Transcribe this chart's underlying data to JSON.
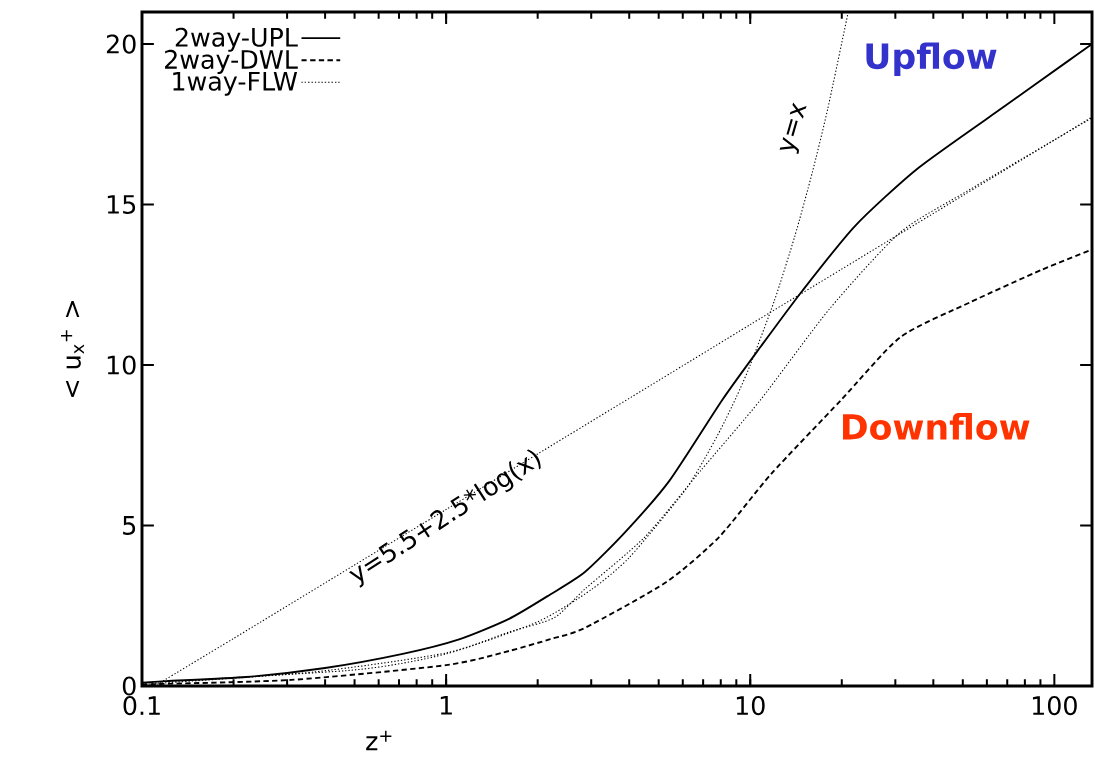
{
  "chart_data": {
    "type": "line",
    "xlabel": "z$^{+}$",
    "ylabel": "< u$_{x}$$^{+}$ >",
    "log": "x",
    "xlim": [
      0.1,
      133
    ],
    "ylim": [
      0,
      21
    ],
    "xticks": [
      0.1,
      1,
      10,
      100
    ],
    "yticks": [
      0,
      5,
      10,
      15,
      20
    ],
    "legend": "top left",
    "series": [
      {
        "name": "2way-UPL",
        "color": "#000000",
        "line_style": "solid",
        "x": [
          0.1,
          0.12,
          0.22,
          0.4,
          0.72,
          1.11,
          1.61,
          2.2,
          2.86,
          3.86,
          5.42,
          8.09,
          10.8,
          14.8,
          22.1,
          35.7,
          69.5,
          112,
          133
        ],
        "values": [
          0.1,
          0.15,
          0.28,
          0.56,
          1.0,
          1.46,
          2.09,
          2.85,
          3.55,
          4.77,
          6.39,
          8.91,
          10.56,
          12.3,
          14.33,
          16.14,
          18.1,
          19.5,
          20.0
        ]
      },
      {
        "name": "2way-DWL",
        "color": "#000000",
        "line_style": "dashed",
        "x": [
          0.1,
          0.31,
          1.0,
          1.61,
          2.2,
          2.86,
          5.3,
          7.9,
          11.7,
          19.9,
          31.2,
          53,
          90.5,
          133
        ],
        "values": [
          0.05,
          0.19,
          0.65,
          1.09,
          1.46,
          1.81,
          3.24,
          4.64,
          6.6,
          8.91,
          10.87,
          11.96,
          12.96,
          13.6
        ]
      },
      {
        "name": "1way-FLW",
        "color": "#000000",
        "line_style": "dotted",
        "x": [
          0.1,
          0.37,
          1.0,
          1.61,
          2.27,
          2.86,
          4.5,
          6.9,
          10.8,
          18.2,
          31.2,
          53,
          133
        ],
        "values": [
          0.05,
          0.44,
          1.03,
          1.68,
          2.13,
          3.02,
          4.64,
          6.73,
          8.91,
          11.74,
          14.14,
          15.48,
          17.7
        ]
      },
      {
        "color": "#000000",
        "line_style": "dotted",
        "x": [
          0.11,
          0.2,
          0.5,
          1,
          2,
          5,
          10,
          20,
          50,
          100,
          133
        ],
        "values": [
          0.0,
          1.48,
          3.77,
          5.5,
          7.23,
          9.52,
          11.26,
          12.99,
          15.28,
          17.01,
          17.73
        ]
      },
      {
        "color": "#000000",
        "line_style": "dotted",
        "x": [
          0.1,
          0.5,
          1,
          2,
          3,
          4,
          6,
          7,
          8,
          9,
          10,
          12,
          14,
          16,
          18,
          21
        ],
        "values": [
          0.1,
          0.5,
          1,
          2,
          3,
          4,
          6,
          7,
          8,
          9,
          10,
          12,
          14,
          16,
          18,
          21
        ]
      }
    ],
    "annotations": [
      "Upflow",
      "Downflow",
      "y=x",
      "y=5.5+2.5*log(x)"
    ]
  }
}
